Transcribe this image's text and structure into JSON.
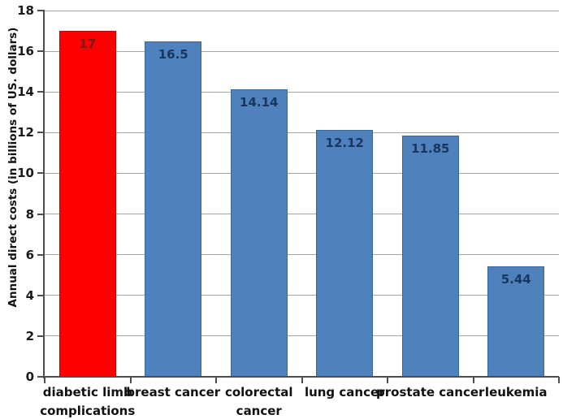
{
  "chart_data": {
    "type": "bar",
    "title": "",
    "xlabel": "",
    "ylabel": "Annual direct costs (in billions of US. dollars)",
    "categories": [
      "diabetic limb\ncomplications",
      "breast cancer",
      "colorectal\ncancer",
      "lung cancer",
      "prostate cancer",
      "leukemia"
    ],
    "values": [
      17,
      16.5,
      14.14,
      12.12,
      11.85,
      5.44
    ],
    "value_labels": [
      "17",
      "16.5",
      "14.14",
      "12.12",
      "11.85",
      "5.44"
    ],
    "highlight_index": 0,
    "ylim": [
      0,
      18
    ],
    "yticks": [
      0,
      2,
      4,
      6,
      8,
      10,
      12,
      14,
      16,
      18
    ],
    "grid": "horizontal",
    "legend": "none",
    "styles": {
      "bar_fill": [
        "#ff0000",
        "#4f81bd",
        "#4f81bd",
        "#4f81bd",
        "#4f81bd",
        "#4f81bd"
      ],
      "bar_border": [
        "#c00000",
        "#3a6799",
        "#3a6799",
        "#3a6799",
        "#3a6799",
        "#3a6799"
      ],
      "value_label_color": [
        "#7b1a14",
        "#17375e",
        "#17375e",
        "#17375e",
        "#17375e",
        "#17375e"
      ],
      "gridline_color": "#a6a6a6",
      "axis_color": "#4d4d4d",
      "text_color": "#1a1a1a",
      "background": "#ffffff"
    }
  }
}
